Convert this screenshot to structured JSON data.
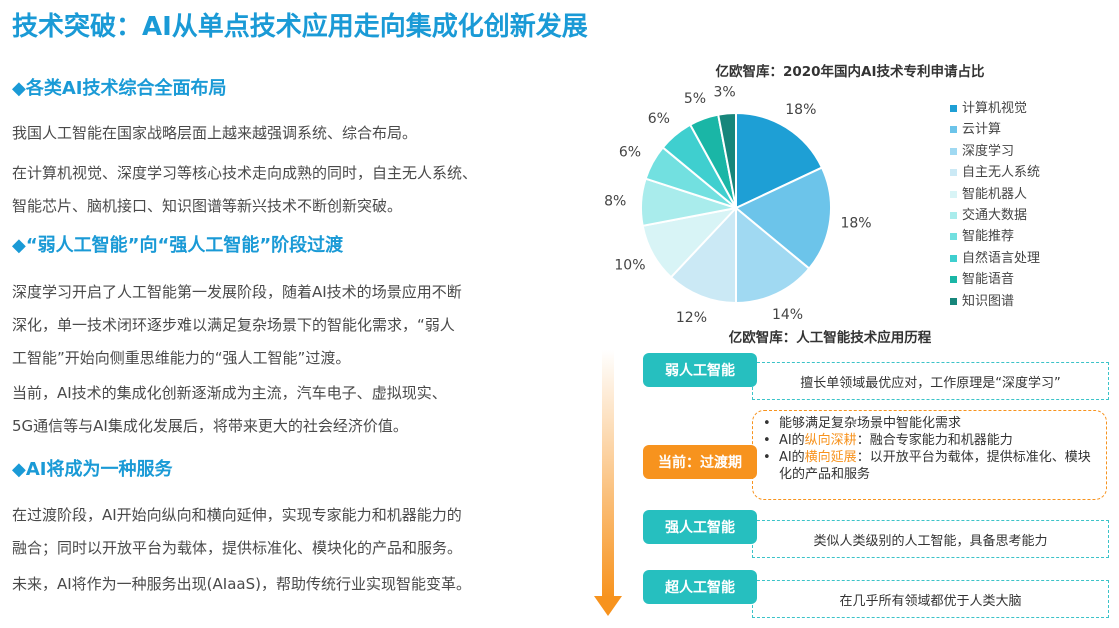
{
  "title": "技术突破：AI从单点技术应用走向集成化创新发展",
  "sections": [
    {
      "heading": "◆各类AI技术综合全面布局",
      "paragraphs": [
        [
          "我国人工智能在国家战略层面上越来越强调系统、综合布局。"
        ],
        [
          "在计算机视觉、深度学习等核心技术走向成熟的同时，自主无人系统、",
          "智能芯片、脑机接口、知识图谱等新兴技术不断创新突破。"
        ]
      ]
    },
    {
      "heading": "◆“弱人工智能”向“强人工智能”阶段过渡",
      "paragraphs": [
        [
          "深度学习开启了人工智能第一发展阶段，随着AI技术的场景应用不断",
          "深化，单一技术闭环逐步难以满足复杂场景下的智能化需求，“弱人",
          "工智能”开始向侧重思维能力的“强人工智能”过渡。"
        ],
        [
          "当前，AI技术的集成化创新逐渐成为主流，汽车电子、虚拟现实、",
          "5G通信等与AI集成化发展后，将带来更大的社会经济价值。"
        ]
      ]
    },
    {
      "heading": "◆AI将成为一种服务",
      "paragraphs": [
        [
          "在过渡阶段，AI开始向纵向和横向延伸，实现专家能力和机器能力的",
          "融合；同时以开放平台为载体，提供标准化、模块化的产品和服务。"
        ],
        [
          "未来，AI将作为一种服务出现(AIaaS)，帮助传统行业实现智能变革。"
        ]
      ]
    }
  ],
  "chart_data": {
    "type": "pie",
    "title": "亿欧智库：2020年国内AI技术专利申请占比",
    "legend_position": "right",
    "categories": [
      "计算机视觉",
      "云计算",
      "深度学习",
      "自主无人系统",
      "智能机器人",
      "交通大数据",
      "智能推荐",
      "自然语言处理",
      "智能语音",
      "知识图谱"
    ],
    "values": [
      18,
      18,
      14,
      12,
      10,
      8,
      6,
      6,
      5,
      3
    ],
    "labels": [
      "18%",
      "18%",
      "14%",
      "12%",
      "10%",
      "8%",
      "6%",
      "6%",
      "5%",
      "3%"
    ],
    "colors": [
      "#1e9fd5",
      "#6cc4ea",
      "#a0d9f2",
      "#cbe9f5",
      "#d8f4f6",
      "#a9ecec",
      "#72e0e0",
      "#3fcfcf",
      "#1ab6a6",
      "#17867b"
    ]
  },
  "timeline": {
    "title": "亿欧智库：人工智能技术应用历程",
    "stages": [
      {
        "label": "弱人工智能",
        "desc": "擅长单领域最优应对，工作原理是“深度学习”"
      },
      {
        "label": "当前：过渡期",
        "bullets": [
          {
            "pre": "能够满足复杂场景中智能化需求"
          },
          {
            "pre": "AI的",
            "hl": "纵向深耕",
            "post": "：融合专家能力和机器能力"
          },
          {
            "pre": "AI的",
            "hl": "横向延展",
            "post": "：以开放平台为载体，提供标准化、模块化的产品和服务"
          }
        ]
      },
      {
        "label": "强人工智能",
        "desc": "类似人类级别的人工智能，具备思考能力"
      },
      {
        "label": "超人工智能",
        "desc": "在几乎所有领域都优于人类大脑"
      }
    ],
    "accent_teal": "#26bfbf",
    "accent_orange": "#f7931e"
  }
}
